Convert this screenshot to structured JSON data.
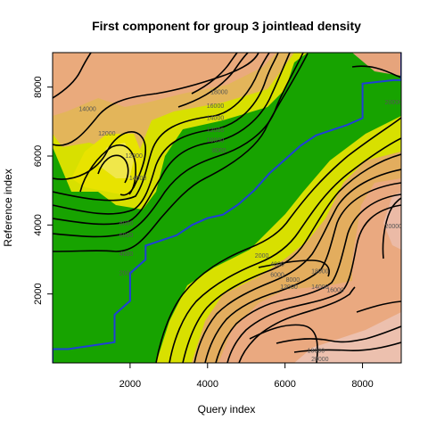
{
  "chart_data": {
    "type": "heatmap",
    "title": "First component for group 3 jointlead density",
    "xlabel": "Query index",
    "ylabel": "Reference index",
    "xlim": [
      0,
      9000
    ],
    "ylim": [
      0,
      9000
    ],
    "x_ticks": [
      "2000",
      "4000",
      "6000",
      "8000"
    ],
    "y_ticks": [
      "2000",
      "4000",
      "6000",
      "8000"
    ],
    "grid": false,
    "legend": "none",
    "colors": {
      "low": "#17a300",
      "mid": "#e6e600",
      "high": "#ecb38a",
      "top": "#f2f2f2",
      "path": "#1f3fd8",
      "contour": "#000000"
    },
    "contour_labels": [
      {
        "text": "18000",
        "x": 4300,
        "y": 7800
      },
      {
        "text": "16000",
        "x": 4200,
        "y": 7400
      },
      {
        "text": "14000",
        "x": 4200,
        "y": 7050
      },
      {
        "text": "12000",
        "x": 4200,
        "y": 6700
      },
      {
        "text": "10000",
        "x": 4200,
        "y": 6400
      },
      {
        "text": "8000",
        "x": 4300,
        "y": 6100
      },
      {
        "text": "14000",
        "x": 900,
        "y": 7300
      },
      {
        "text": "12000",
        "x": 1400,
        "y": 6600
      },
      {
        "text": "12000",
        "x": 2100,
        "y": 5950
      },
      {
        "text": "14000",
        "x": 2200,
        "y": 5300
      },
      {
        "text": "8000",
        "x": 1900,
        "y": 4000
      },
      {
        "text": "6000",
        "x": 1900,
        "y": 3650
      },
      {
        "text": "4000",
        "x": 1900,
        "y": 3100
      },
      {
        "text": "2000",
        "x": 1900,
        "y": 2550
      },
      {
        "text": "2000",
        "x": 5400,
        "y": 3050
      },
      {
        "text": "4000",
        "x": 5800,
        "y": 2800
      },
      {
        "text": "6000",
        "x": 5800,
        "y": 2500
      },
      {
        "text": "8000",
        "x": 6200,
        "y": 2350
      },
      {
        "text": "12000",
        "x": 6100,
        "y": 2150
      },
      {
        "text": "14000",
        "x": 6900,
        "y": 2150
      },
      {
        "text": "16000",
        "x": 7300,
        "y": 2050
      },
      {
        "text": "18000",
        "x": 6900,
        "y": 2600
      },
      {
        "text": "20000",
        "x": 8800,
        "y": 3900
      },
      {
        "text": "18000",
        "x": 6800,
        "y": 300
      },
      {
        "text": "20000",
        "x": 6900,
        "y": 50
      },
      {
        "text": "20000",
        "x": 8800,
        "y": 7500
      }
    ],
    "warping_path": {
      "x": [
        0,
        0,
        400,
        1600,
        1600,
        2000,
        2000,
        2400,
        2400,
        3200,
        3600,
        4000,
        4400,
        4800,
        5200,
        5600,
        6000,
        6400,
        6800,
        7600,
        8000,
        8000,
        8800,
        9000,
        9000
      ],
      "y": [
        0,
        400,
        400,
        600,
        1400,
        1800,
        2600,
        3000,
        3400,
        3700,
        4000,
        4200,
        4300,
        4600,
        5000,
        5500,
        5900,
        6300,
        6600,
        6900,
        7100,
        8100,
        8200,
        8200,
        9000
      ]
    }
  }
}
